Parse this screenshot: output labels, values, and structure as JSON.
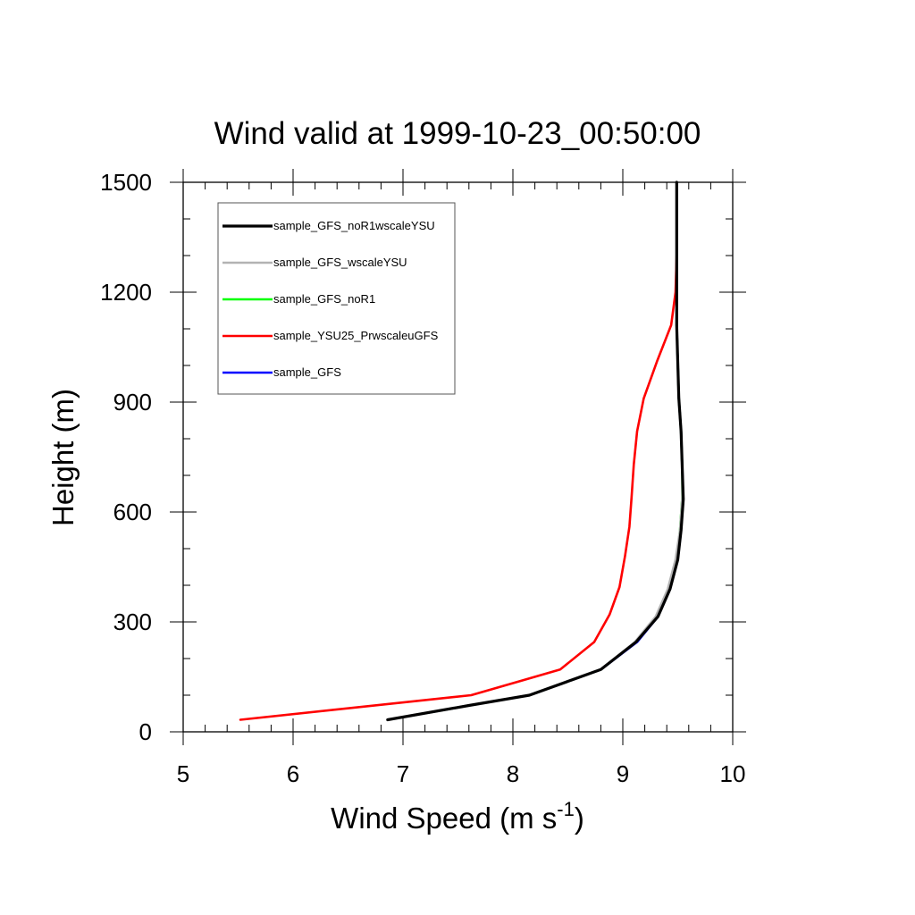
{
  "chart_data": {
    "type": "line",
    "title": "Wind valid at 1999-10-23_00:50:00",
    "xlabel": "Wind Speed (m s",
    "xlabel_superscript": "-1",
    "xlabel_suffix": ")",
    "ylabel": "Height (m)",
    "xlim": [
      5,
      10
    ],
    "ylim": [
      0,
      1500
    ],
    "x_ticks": [
      "5",
      "6",
      "7",
      "8",
      "9",
      "10"
    ],
    "y_ticks": [
      "0",
      "300",
      "600",
      "900",
      "1200",
      "1500"
    ],
    "legend_placement": "top-left",
    "series": [
      {
        "name": "sample_GFS",
        "color": "#0000ff",
        "points": [
          [
            6.86,
            33
          ],
          [
            7.6,
            72
          ],
          [
            8.15,
            100
          ],
          [
            8.8,
            170
          ],
          [
            9.13,
            245
          ],
          [
            9.32,
            315
          ],
          [
            9.43,
            390
          ],
          [
            9.5,
            470
          ],
          [
            9.53,
            550
          ],
          [
            9.55,
            635
          ],
          [
            9.54,
            730
          ],
          [
            9.53,
            820
          ],
          [
            9.51,
            910
          ],
          [
            9.5,
            1010
          ],
          [
            9.49,
            1110
          ],
          [
            9.49,
            1200
          ],
          [
            9.49,
            1300
          ],
          [
            9.49,
            1400
          ],
          [
            9.49,
            1500
          ]
        ]
      },
      {
        "name": "sample_YSU25_PrwscaleuGFS",
        "color": "#ff0000",
        "points": [
          [
            5.52,
            33
          ],
          [
            7.62,
            100
          ],
          [
            8.43,
            170
          ],
          [
            8.74,
            245
          ],
          [
            8.88,
            320
          ],
          [
            8.97,
            395
          ],
          [
            9.02,
            480
          ],
          [
            9.06,
            560
          ],
          [
            9.08,
            640
          ],
          [
            9.1,
            730
          ],
          [
            9.13,
            820
          ],
          [
            9.19,
            910
          ],
          [
            9.31,
            1010
          ],
          [
            9.44,
            1110
          ],
          [
            9.48,
            1200
          ],
          [
            9.49,
            1300
          ],
          [
            9.49,
            1400
          ],
          [
            9.49,
            1500
          ]
        ]
      },
      {
        "name": "sample_GFS_noR1",
        "color": "#00ff00",
        "points": [
          [
            6.86,
            33
          ],
          [
            7.6,
            72
          ],
          [
            8.15,
            100
          ],
          [
            8.8,
            170
          ],
          [
            9.12,
            245
          ],
          [
            9.31,
            315
          ],
          [
            9.42,
            390
          ],
          [
            9.49,
            470
          ],
          [
            9.52,
            550
          ],
          [
            9.54,
            635
          ],
          [
            9.54,
            730
          ],
          [
            9.53,
            820
          ],
          [
            9.51,
            910
          ],
          [
            9.5,
            1010
          ],
          [
            9.49,
            1110
          ],
          [
            9.49,
            1200
          ],
          [
            9.49,
            1300
          ],
          [
            9.49,
            1400
          ],
          [
            9.49,
            1500
          ]
        ]
      },
      {
        "name": "sample_GFS_wscaleYSU",
        "color": "#b3b3b3",
        "points": [
          [
            6.86,
            33
          ],
          [
            7.6,
            72
          ],
          [
            8.15,
            100
          ],
          [
            8.8,
            170
          ],
          [
            9.11,
            245
          ],
          [
            9.3,
            315
          ],
          [
            9.41,
            390
          ],
          [
            9.48,
            470
          ],
          [
            9.52,
            550
          ],
          [
            9.54,
            635
          ],
          [
            9.54,
            730
          ],
          [
            9.53,
            820
          ],
          [
            9.51,
            910
          ],
          [
            9.5,
            1010
          ],
          [
            9.49,
            1110
          ],
          [
            9.49,
            1200
          ],
          [
            9.49,
            1300
          ],
          [
            9.49,
            1400
          ],
          [
            9.49,
            1500
          ]
        ]
      },
      {
        "name": "sample_GFS_noR1wscaleYSU",
        "color": "#000000",
        "points": [
          [
            6.86,
            33
          ],
          [
            7.6,
            72
          ],
          [
            8.15,
            100
          ],
          [
            8.8,
            170
          ],
          [
            9.12,
            245
          ],
          [
            9.32,
            315
          ],
          [
            9.43,
            390
          ],
          [
            9.5,
            470
          ],
          [
            9.53,
            550
          ],
          [
            9.55,
            635
          ],
          [
            9.54,
            730
          ],
          [
            9.53,
            820
          ],
          [
            9.51,
            910
          ],
          [
            9.5,
            1010
          ],
          [
            9.49,
            1110
          ],
          [
            9.49,
            1200
          ],
          [
            9.49,
            1300
          ],
          [
            9.49,
            1400
          ],
          [
            9.49,
            1500
          ]
        ]
      }
    ],
    "legend_order": [
      "sample_GFS_noR1wscaleYSU",
      "sample_GFS_wscaleYSU",
      "sample_GFS_noR1",
      "sample_YSU25_PrwscaleuGFS",
      "sample_GFS"
    ]
  }
}
